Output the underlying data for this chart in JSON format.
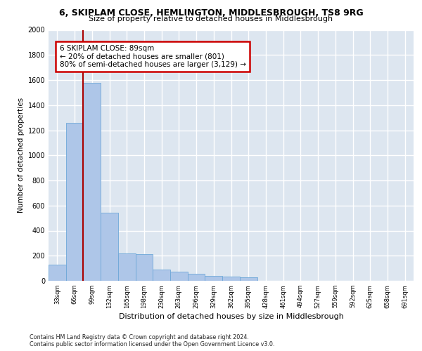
{
  "title_line1": "6, SKIPLAM CLOSE, HEMLINGTON, MIDDLESBROUGH, TS8 9RG",
  "title_line2": "Size of property relative to detached houses in Middlesbrough",
  "xlabel": "Distribution of detached houses by size in Middlesbrough",
  "ylabel": "Number of detached properties",
  "footnote": "Contains HM Land Registry data © Crown copyright and database right 2024.\nContains public sector information licensed under the Open Government Licence v3.0.",
  "categories": [
    "33sqm",
    "66sqm",
    "99sqm",
    "132sqm",
    "165sqm",
    "198sqm",
    "230sqm",
    "263sqm",
    "296sqm",
    "329sqm",
    "362sqm",
    "395sqm",
    "428sqm",
    "461sqm",
    "494sqm",
    "527sqm",
    "559sqm",
    "592sqm",
    "625sqm",
    "658sqm",
    "691sqm"
  ],
  "values": [
    130,
    1260,
    1580,
    540,
    220,
    210,
    90,
    75,
    55,
    40,
    35,
    30,
    0,
    0,
    0,
    0,
    0,
    0,
    0,
    0,
    0
  ],
  "bar_color": "#aec6e8",
  "bar_edge_color": "#6ea8d8",
  "background_color": "#dde6f0",
  "grid_color": "#ffffff",
  "redline_color": "#aa0000",
  "annotation_text": "6 SKIPLAM CLOSE: 89sqm\n← 20% of detached houses are smaller (801)\n80% of semi-detached houses are larger (3,129) →",
  "annotation_box_edge": "#cc0000",
  "ylim": [
    0,
    2000
  ],
  "yticks": [
    0,
    200,
    400,
    600,
    800,
    1000,
    1200,
    1400,
    1600,
    1800,
    2000
  ]
}
